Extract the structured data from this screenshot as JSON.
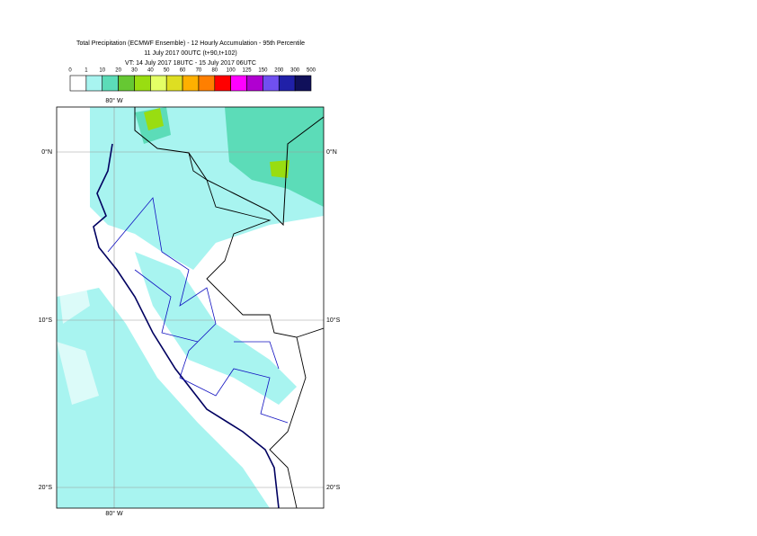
{
  "header": {
    "title": "Total Precipitation (ECMWF Ensemble) - 12 Hourly Accumulation - 95th Percentile",
    "base_time": "11 July 2017 00UTC (t+90,t+102)",
    "valid_time": "VT: 14 July 2017 18UTC - 15 July 2017 06UTC"
  },
  "legend": {
    "labels": [
      0,
      1,
      10,
      20,
      30,
      40,
      50,
      60,
      70,
      80,
      100,
      125,
      150,
      200,
      300,
      500
    ],
    "colors": [
      "#ffffff",
      "#a8f4f0",
      "#5cdcb8",
      "#66c833",
      "#99dd11",
      "#e4ff66",
      "#dede22",
      "#ffb000",
      "#ff7f00",
      "#ff0000",
      "#ff00ff",
      "#b000d0",
      "#7050f0",
      "#2020a8",
      "#10105a"
    ]
  },
  "map": {
    "lon_labels": [
      "80° W"
    ],
    "lat_labels": [
      "0°N",
      "10°S",
      "20°S"
    ]
  }
}
